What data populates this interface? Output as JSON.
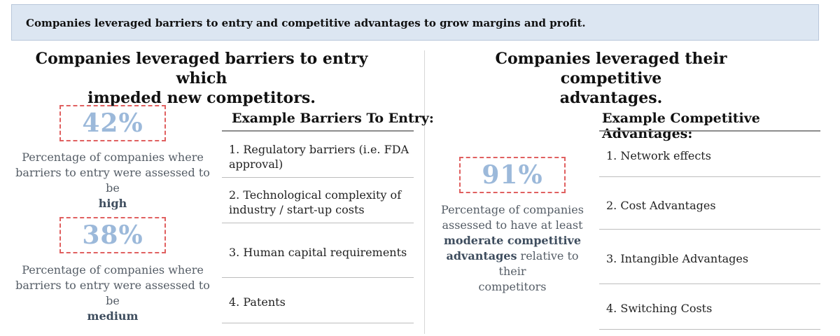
{
  "banner": {
    "text": "Companies leveraged barriers to entry and competitive advantages to grow margins and profit."
  },
  "left": {
    "heading_line1": "Companies leveraged barriers to entry which",
    "heading_line2": "impeded new competitors.",
    "stats": [
      {
        "value": "42%",
        "line1": "Percentage of companies where",
        "line2": "barriers to entry were assessed to be",
        "emphasis": "high"
      },
      {
        "value": "38%",
        "line1": "Percentage of companies where",
        "line2": "barriers to entry were assessed to be",
        "emphasis": "medium"
      }
    ],
    "table_title": "Example Barriers To Entry:",
    "items": [
      {
        "line1": "1. Regulatory barriers (i.e. FDA",
        "line2": "approval)"
      },
      {
        "line1": "2. Technological complexity of",
        "line2": "industry / start-up costs"
      },
      {
        "line1": "3. Human capital requirements",
        "line2": ""
      },
      {
        "line1": "4. Patents",
        "line2": ""
      }
    ]
  },
  "right": {
    "heading_line1": "Companies leveraged their competitive",
    "heading_line2": "advantages.",
    "stat": {
      "value": "91%",
      "line1": "Percentage of companies",
      "line2": "assessed to have at least",
      "bold1": "moderate competitive",
      "bold2": "advantages",
      "line3_rest": " relative to their",
      "line4": "competitors"
    },
    "table_title": "Example Competitive Advantages:",
    "items": [
      {
        "text": "1. Network effects"
      },
      {
        "text": "2. Cost Advantages"
      },
      {
        "text": "3. Intangible Advantages"
      },
      {
        "text": "4. Switching Costs"
      }
    ]
  },
  "colors": {
    "banner_bg": "#dce6f2",
    "stat_value": "#9cb9da",
    "stat_border": "#e06060",
    "stat_text": "#555d66"
  }
}
